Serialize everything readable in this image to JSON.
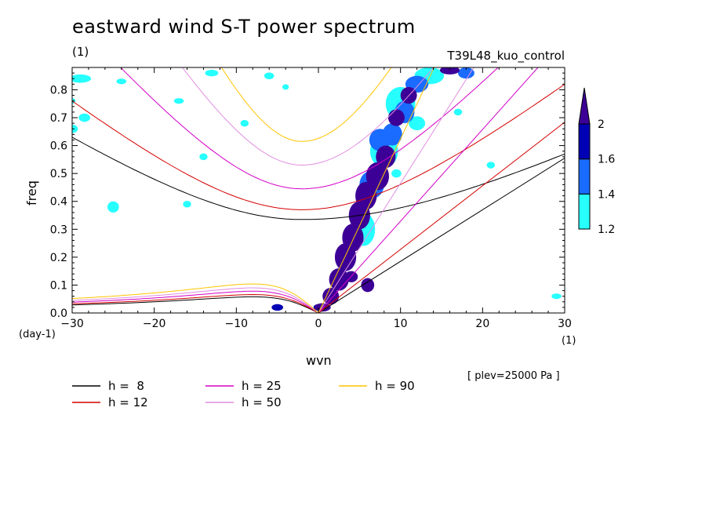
{
  "title": "eastward wind S-T power spectrum",
  "units_label": "(1)",
  "experiment": "T39L48_kuo_control",
  "chart_data": {
    "type": "contour",
    "xlabel": "wvn",
    "ylabel": "freq",
    "x_unit": "(1)",
    "y_unit": "(day-1)",
    "xlim": [
      -30,
      30
    ],
    "ylim": [
      0,
      0.88
    ],
    "xticks": [
      -30,
      -20,
      -10,
      0,
      10,
      20,
      30
    ],
    "yticks": [
      0.0,
      0.1,
      0.2,
      0.3,
      0.4,
      0.5,
      0.6,
      0.7,
      0.8
    ],
    "level_note": "[ plev=25000 Pa ]",
    "colorbar": {
      "levels": [
        1.2,
        1.4,
        1.6,
        2
      ],
      "colors": [
        "#27ffff",
        "#1a6bff",
        "#0000b4",
        "#3c0096"
      ]
    },
    "dispersion_curves": [
      {
        "label": "h =  8",
        "h": 8,
        "color": "#000000"
      },
      {
        "label": "h = 12",
        "h": 12,
        "color": "#d40000"
      },
      {
        "label": "h = 25",
        "h": 25,
        "color": "#d400c8"
      },
      {
        "label": "h = 50",
        "h": 50,
        "color": "#e08ee0"
      },
      {
        "label": "h = 90",
        "h": 90,
        "color": "#ffc400"
      }
    ],
    "kelvin_lines_slope_per_unit_wvn": {
      "h8": 0.0185,
      "h12": 0.0228,
      "h25": 0.0329,
      "h50": 0.0465,
      "h90": 0.0624
    },
    "ig_curves": {
      "h8": {
        "min_freq": 0.335,
        "at_-30": 0.63,
        "at_30": 0.57
      },
      "h12": {
        "min_freq": 0.37,
        "at_-30": 0.76,
        "at_30": 0.82
      },
      "h25": {
        "min_freq": 0.445,
        "at_-30": 1.06,
        "at_30": 1.11
      },
      "h50": {
        "min_freq": 0.53,
        "at_-30": 1.45,
        "at_30": 1.5
      },
      "h90": {
        "min_freq": 0.615,
        "at_-30": 1.9,
        "at_30": 1.95
      }
    },
    "rossby_curves": {
      "h8": {
        "peak_freq": 0.058
      },
      "h12": {
        "peak_freq": 0.066
      },
      "h25": {
        "peak_freq": 0.078
      },
      "h50": {
        "peak_freq": 0.09
      },
      "h90": {
        "peak_freq": 0.104
      }
    },
    "power_blobs": [
      {
        "x": 0.5,
        "y": 0.02,
        "rx": 1.0,
        "ry": 0.015,
        "level": 2
      },
      {
        "x": 1.5,
        "y": 0.06,
        "rx": 1.0,
        "ry": 0.03,
        "level": 2
      },
      {
        "x": 2.5,
        "y": 0.12,
        "rx": 1.2,
        "ry": 0.04,
        "level": 2
      },
      {
        "x": 3.3,
        "y": 0.2,
        "rx": 1.3,
        "ry": 0.05,
        "level": 2
      },
      {
        "x": 4.2,
        "y": 0.27,
        "rx": 1.3,
        "ry": 0.05,
        "level": 2
      },
      {
        "x": 5.0,
        "y": 0.35,
        "rx": 1.3,
        "ry": 0.05,
        "level": 2
      },
      {
        "x": 5.8,
        "y": 0.42,
        "rx": 1.3,
        "ry": 0.05,
        "level": 2
      },
      {
        "x": 7.2,
        "y": 0.49,
        "rx": 1.4,
        "ry": 0.05,
        "level": 2
      },
      {
        "x": 8.2,
        "y": 0.56,
        "rx": 1.2,
        "ry": 0.04,
        "level": 2
      },
      {
        "x": 9.5,
        "y": 0.7,
        "rx": 1.0,
        "ry": 0.03,
        "level": 2
      },
      {
        "x": 11.0,
        "y": 0.78,
        "rx": 1.0,
        "ry": 0.03,
        "level": 2
      },
      {
        "x": 16.0,
        "y": 0.87,
        "rx": 1.2,
        "ry": 0.015,
        "level": 2
      },
      {
        "x": 6.0,
        "y": 0.1,
        "rx": 0.8,
        "ry": 0.025,
        "level": 2
      },
      {
        "x": 4.0,
        "y": 0.13,
        "rx": 0.8,
        "ry": 0.02,
        "level": 2
      },
      {
        "x": -5.0,
        "y": 0.02,
        "rx": 0.7,
        "ry": 0.012,
        "level": 1.6
      },
      {
        "x": 0.0,
        "y": 0.02,
        "rx": 0.6,
        "ry": 0.012,
        "level": 1.6
      },
      {
        "x": 7.5,
        "y": 0.62,
        "rx": 1.3,
        "ry": 0.04,
        "level": 1.4
      },
      {
        "x": 9.0,
        "y": 0.64,
        "rx": 1.2,
        "ry": 0.04,
        "level": 1.4
      },
      {
        "x": 10.5,
        "y": 0.72,
        "rx": 1.2,
        "ry": 0.04,
        "level": 1.4
      },
      {
        "x": 12.0,
        "y": 0.82,
        "rx": 1.4,
        "ry": 0.03,
        "level": 1.4
      },
      {
        "x": 18.0,
        "y": 0.86,
        "rx": 1.0,
        "ry": 0.02,
        "level": 1.4
      },
      {
        "x": 6.5,
        "y": 0.46,
        "rx": 1.5,
        "ry": 0.05,
        "level": 1.4
      },
      {
        "x": 8.0,
        "y": 0.58,
        "rx": 1.7,
        "ry": 0.06,
        "level": 1.2
      },
      {
        "x": 10.0,
        "y": 0.75,
        "rx": 1.8,
        "ry": 0.06,
        "level": 1.2
      },
      {
        "x": 13.5,
        "y": 0.85,
        "rx": 1.8,
        "ry": 0.03,
        "level": 1.2
      },
      {
        "x": 5.5,
        "y": 0.3,
        "rx": 1.4,
        "ry": 0.06,
        "level": 1.2
      },
      {
        "x": 12.0,
        "y": 0.68,
        "rx": 1.0,
        "ry": 0.025,
        "level": 1.2
      },
      {
        "x": 9.5,
        "y": 0.5,
        "rx": 0.6,
        "ry": 0.015,
        "level": 1.2
      },
      {
        "x": -29.0,
        "y": 0.84,
        "rx": 1.3,
        "ry": 0.015,
        "level": 1.2
      },
      {
        "x": -28.5,
        "y": 0.7,
        "rx": 0.7,
        "ry": 0.015,
        "level": 1.2
      },
      {
        "x": -30.0,
        "y": 0.66,
        "rx": 0.7,
        "ry": 0.015,
        "level": 1.2
      },
      {
        "x": -24.0,
        "y": 0.83,
        "rx": 0.6,
        "ry": 0.01,
        "level": 1.2
      },
      {
        "x": -13.0,
        "y": 0.86,
        "rx": 0.8,
        "ry": 0.012,
        "level": 1.2
      },
      {
        "x": -25.0,
        "y": 0.38,
        "rx": 0.7,
        "ry": 0.02,
        "level": 1.2
      },
      {
        "x": -16.0,
        "y": 0.39,
        "rx": 0.5,
        "ry": 0.012,
        "level": 1.2
      },
      {
        "x": -6.0,
        "y": 0.85,
        "rx": 0.6,
        "ry": 0.012,
        "level": 1.2
      },
      {
        "x": -4.0,
        "y": 0.81,
        "rx": 0.4,
        "ry": 0.01,
        "level": 1.2
      },
      {
        "x": -17.0,
        "y": 0.76,
        "rx": 0.6,
        "ry": 0.01,
        "level": 1.2
      },
      {
        "x": 21.0,
        "y": 0.53,
        "rx": 0.5,
        "ry": 0.012,
        "level": 1.2
      },
      {
        "x": 29.0,
        "y": 0.06,
        "rx": 0.6,
        "ry": 0.01,
        "level": 1.2
      },
      {
        "x": -14.0,
        "y": 0.56,
        "rx": 0.5,
        "ry": 0.012,
        "level": 1.2
      },
      {
        "x": -9.0,
        "y": 0.68,
        "rx": 0.5,
        "ry": 0.012,
        "level": 1.2
      },
      {
        "x": 17.0,
        "y": 0.72,
        "rx": 0.5,
        "ry": 0.012,
        "level": 1.2
      },
      {
        "x": -30.0,
        "y": 0.76,
        "rx": 0.4,
        "ry": 0.01,
        "level": 1.2
      }
    ]
  }
}
